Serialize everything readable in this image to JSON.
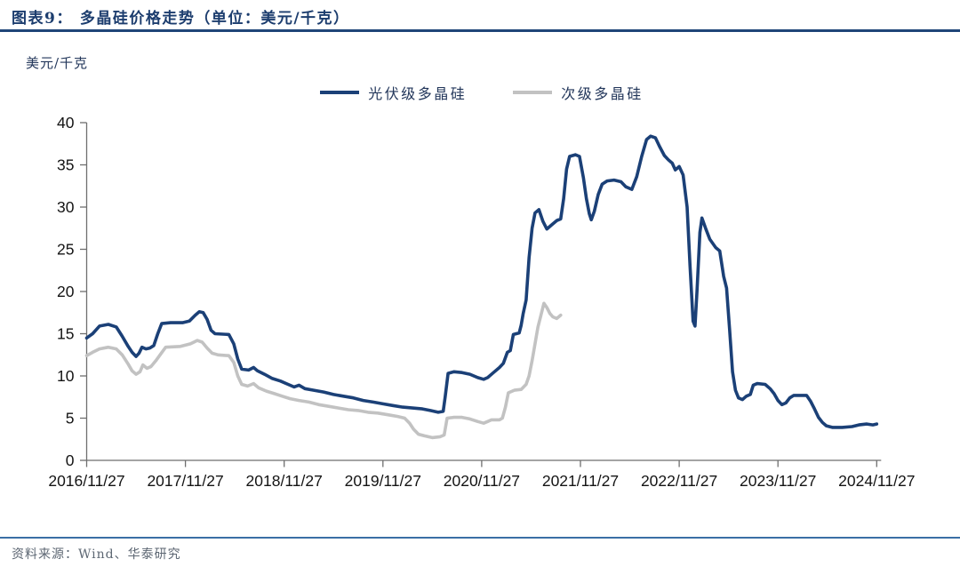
{
  "figure": {
    "title_prefix": "图表9：",
    "title": "多晶硅价格走势（单位：美元/千克）",
    "unit_label": "美元/千克",
    "source": "资料来源：Wind、华泰研究"
  },
  "colors": {
    "title_text": "#1c3d6e",
    "title_rule": "#1f4578",
    "source_rule": "#3a6fa5",
    "source_text": "#5c6672",
    "primary_series": "#1b4077",
    "secondary_series": "#c2c2c2"
  },
  "chart_data": {
    "type": "line",
    "title": "多晶硅价格走势",
    "unit": "美元/千克",
    "grid": false,
    "legend_position": "top-center",
    "style": {
      "axis_color": "#6e6e6e"
    },
    "x_axis": {
      "unit": "years_since_first_tick",
      "tick_labels": [
        "2016/11/27",
        "2017/11/27",
        "2018/11/27",
        "2019/11/27",
        "2020/11/27",
        "2021/11/27",
        "2022/11/27",
        "2023/11/27",
        "2024/11/27"
      ]
    },
    "y_axis": {
      "min": 0,
      "max": 40,
      "step": 5,
      "tick_labels": [
        "0",
        "5",
        "10",
        "15",
        "20",
        "25",
        "30",
        "35",
        "40"
      ]
    },
    "legend": [
      {
        "label": "光伏级多晶硅",
        "color": "#1b4077"
      },
      {
        "label": "次级多晶硅",
        "color": "#c2c2c2"
      }
    ],
    "series": [
      {
        "key": "pv-grade",
        "name": "光伏级多晶硅",
        "color": "#1b4077",
        "z": 1,
        "points": [
          [
            0.0,
            14.5
          ],
          [
            0.06,
            15.0
          ],
          [
            0.13,
            15.9
          ],
          [
            0.22,
            16.1
          ],
          [
            0.3,
            15.8
          ],
          [
            0.36,
            14.7
          ],
          [
            0.42,
            13.5
          ],
          [
            0.46,
            12.8
          ],
          [
            0.5,
            12.3
          ],
          [
            0.53,
            12.7
          ],
          [
            0.56,
            13.4
          ],
          [
            0.6,
            13.2
          ],
          [
            0.64,
            13.3
          ],
          [
            0.68,
            13.6
          ],
          [
            0.72,
            15.0
          ],
          [
            0.76,
            16.2
          ],
          [
            0.85,
            16.3
          ],
          [
            0.97,
            16.3
          ],
          [
            1.04,
            16.5
          ],
          [
            1.1,
            17.2
          ],
          [
            1.14,
            17.6
          ],
          [
            1.18,
            17.5
          ],
          [
            1.22,
            16.7
          ],
          [
            1.26,
            15.4
          ],
          [
            1.3,
            15.0
          ],
          [
            1.44,
            14.9
          ],
          [
            1.49,
            13.8
          ],
          [
            1.53,
            12.0
          ],
          [
            1.57,
            10.8
          ],
          [
            1.64,
            10.7
          ],
          [
            1.69,
            11.0
          ],
          [
            1.73,
            10.6
          ],
          [
            1.8,
            10.2
          ],
          [
            1.88,
            9.7
          ],
          [
            1.96,
            9.4
          ],
          [
            2.04,
            9.0
          ],
          [
            2.1,
            8.7
          ],
          [
            2.15,
            8.9
          ],
          [
            2.21,
            8.5
          ],
          [
            2.3,
            8.3
          ],
          [
            2.4,
            8.1
          ],
          [
            2.5,
            7.8
          ],
          [
            2.6,
            7.6
          ],
          [
            2.7,
            7.4
          ],
          [
            2.8,
            7.1
          ],
          [
            2.9,
            6.9
          ],
          [
            3.0,
            6.7
          ],
          [
            3.1,
            6.5
          ],
          [
            3.2,
            6.3
          ],
          [
            3.3,
            6.2
          ],
          [
            3.4,
            6.1
          ],
          [
            3.48,
            5.9
          ],
          [
            3.56,
            5.7
          ],
          [
            3.61,
            5.8
          ],
          [
            3.63,
            7.5
          ],
          [
            3.66,
            10.3
          ],
          [
            3.72,
            10.5
          ],
          [
            3.8,
            10.4
          ],
          [
            3.88,
            10.2
          ],
          [
            3.96,
            9.8
          ],
          [
            4.02,
            9.6
          ],
          [
            4.06,
            9.8
          ],
          [
            4.12,
            10.4
          ],
          [
            4.18,
            11.0
          ],
          [
            4.22,
            11.5
          ],
          [
            4.26,
            12.8
          ],
          [
            4.29,
            13.0
          ],
          [
            4.32,
            14.9
          ],
          [
            4.38,
            15.1
          ],
          [
            4.4,
            16.0
          ],
          [
            4.42,
            17.4
          ],
          [
            4.45,
            19.0
          ],
          [
            4.48,
            24.0
          ],
          [
            4.51,
            27.5
          ],
          [
            4.54,
            29.3
          ],
          [
            4.58,
            29.7
          ],
          [
            4.62,
            28.3
          ],
          [
            4.66,
            27.4
          ],
          [
            4.71,
            27.9
          ],
          [
            4.76,
            28.4
          ],
          [
            4.8,
            28.6
          ],
          [
            4.83,
            31.0
          ],
          [
            4.86,
            34.5
          ],
          [
            4.89,
            36.0
          ],
          [
            4.95,
            36.2
          ],
          [
            4.99,
            36.0
          ],
          [
            5.03,
            33.5
          ],
          [
            5.06,
            31.0
          ],
          [
            5.09,
            29.2
          ],
          [
            5.11,
            28.5
          ],
          [
            5.14,
            29.5
          ],
          [
            5.18,
            31.5
          ],
          [
            5.22,
            32.7
          ],
          [
            5.27,
            33.1
          ],
          [
            5.34,
            33.2
          ],
          [
            5.41,
            33.0
          ],
          [
            5.46,
            32.4
          ],
          [
            5.52,
            32.1
          ],
          [
            5.57,
            33.6
          ],
          [
            5.62,
            36.0
          ],
          [
            5.67,
            38.0
          ],
          [
            5.71,
            38.4
          ],
          [
            5.76,
            38.2
          ],
          [
            5.8,
            37.2
          ],
          [
            5.85,
            36.1
          ],
          [
            5.89,
            35.6
          ],
          [
            5.93,
            35.2
          ],
          [
            5.96,
            34.4
          ],
          [
            6.0,
            34.8
          ],
          [
            6.04,
            33.8
          ],
          [
            6.08,
            30.0
          ],
          [
            6.11,
            23.0
          ],
          [
            6.14,
            16.5
          ],
          [
            6.16,
            15.9
          ],
          [
            6.18,
            20.0
          ],
          [
            6.21,
            27.0
          ],
          [
            6.23,
            28.7
          ],
          [
            6.27,
            27.4
          ],
          [
            6.31,
            26.2
          ],
          [
            6.37,
            25.2
          ],
          [
            6.41,
            24.8
          ],
          [
            6.45,
            21.8
          ],
          [
            6.48,
            20.4
          ],
          [
            6.51,
            15.5
          ],
          [
            6.54,
            10.5
          ],
          [
            6.57,
            8.3
          ],
          [
            6.6,
            7.4
          ],
          [
            6.64,
            7.2
          ],
          [
            6.68,
            7.6
          ],
          [
            6.72,
            7.8
          ],
          [
            6.75,
            8.9
          ],
          [
            6.79,
            9.1
          ],
          [
            6.87,
            9.0
          ],
          [
            6.92,
            8.5
          ],
          [
            6.96,
            7.9
          ],
          [
            7.0,
            7.1
          ],
          [
            7.04,
            6.6
          ],
          [
            7.08,
            6.8
          ],
          [
            7.12,
            7.4
          ],
          [
            7.16,
            7.7
          ],
          [
            7.29,
            7.7
          ],
          [
            7.33,
            7.0
          ],
          [
            7.37,
            6.1
          ],
          [
            7.41,
            5.1
          ],
          [
            7.45,
            4.5
          ],
          [
            7.49,
            4.1
          ],
          [
            7.55,
            3.9
          ],
          [
            7.65,
            3.9
          ],
          [
            7.75,
            4.0
          ],
          [
            7.82,
            4.2
          ],
          [
            7.9,
            4.3
          ],
          [
            7.96,
            4.2
          ],
          [
            8.0,
            4.3
          ]
        ]
      },
      {
        "key": "secondary-grade",
        "name": "次级多晶硅",
        "color": "#c2c2c2",
        "z": 0,
        "points": [
          [
            0.0,
            12.4
          ],
          [
            0.06,
            12.8
          ],
          [
            0.13,
            13.2
          ],
          [
            0.22,
            13.4
          ],
          [
            0.3,
            13.2
          ],
          [
            0.36,
            12.5
          ],
          [
            0.42,
            11.4
          ],
          [
            0.46,
            10.6
          ],
          [
            0.5,
            10.2
          ],
          [
            0.54,
            10.5
          ],
          [
            0.57,
            11.3
          ],
          [
            0.61,
            10.9
          ],
          [
            0.65,
            11.1
          ],
          [
            0.7,
            11.8
          ],
          [
            0.75,
            12.6
          ],
          [
            0.8,
            13.4
          ],
          [
            0.95,
            13.5
          ],
          [
            1.05,
            13.8
          ],
          [
            1.12,
            14.2
          ],
          [
            1.17,
            14.0
          ],
          [
            1.22,
            13.3
          ],
          [
            1.27,
            12.7
          ],
          [
            1.33,
            12.5
          ],
          [
            1.44,
            12.4
          ],
          [
            1.49,
            11.6
          ],
          [
            1.53,
            10.0
          ],
          [
            1.57,
            9.0
          ],
          [
            1.63,
            8.8
          ],
          [
            1.69,
            9.1
          ],
          [
            1.74,
            8.6
          ],
          [
            1.82,
            8.2
          ],
          [
            1.9,
            7.9
          ],
          [
            1.98,
            7.6
          ],
          [
            2.06,
            7.3
          ],
          [
            2.15,
            7.1
          ],
          [
            2.25,
            6.9
          ],
          [
            2.35,
            6.6
          ],
          [
            2.45,
            6.4
          ],
          [
            2.55,
            6.2
          ],
          [
            2.65,
            6.0
          ],
          [
            2.75,
            5.9
          ],
          [
            2.85,
            5.7
          ],
          [
            2.95,
            5.6
          ],
          [
            3.05,
            5.4
          ],
          [
            3.15,
            5.2
          ],
          [
            3.22,
            5.0
          ],
          [
            3.27,
            4.4
          ],
          [
            3.31,
            3.7
          ],
          [
            3.36,
            3.1
          ],
          [
            3.42,
            2.9
          ],
          [
            3.5,
            2.7
          ],
          [
            3.58,
            2.8
          ],
          [
            3.62,
            3.0
          ],
          [
            3.65,
            5.0
          ],
          [
            3.72,
            5.1
          ],
          [
            3.8,
            5.1
          ],
          [
            3.88,
            4.9
          ],
          [
            3.96,
            4.6
          ],
          [
            4.02,
            4.4
          ],
          [
            4.06,
            4.6
          ],
          [
            4.1,
            4.8
          ],
          [
            4.18,
            4.8
          ],
          [
            4.21,
            5.0
          ],
          [
            4.24,
            6.3
          ],
          [
            4.27,
            8.0
          ],
          [
            4.33,
            8.3
          ],
          [
            4.4,
            8.4
          ],
          [
            4.45,
            9.0
          ],
          [
            4.48,
            10.0
          ],
          [
            4.51,
            11.8
          ],
          [
            4.54,
            13.8
          ],
          [
            4.57,
            15.8
          ],
          [
            4.6,
            17.2
          ],
          [
            4.63,
            18.6
          ],
          [
            4.66,
            18.1
          ],
          [
            4.69,
            17.4
          ],
          [
            4.72,
            17.0
          ],
          [
            4.76,
            16.8
          ],
          [
            4.8,
            17.2
          ]
        ]
      }
    ]
  }
}
